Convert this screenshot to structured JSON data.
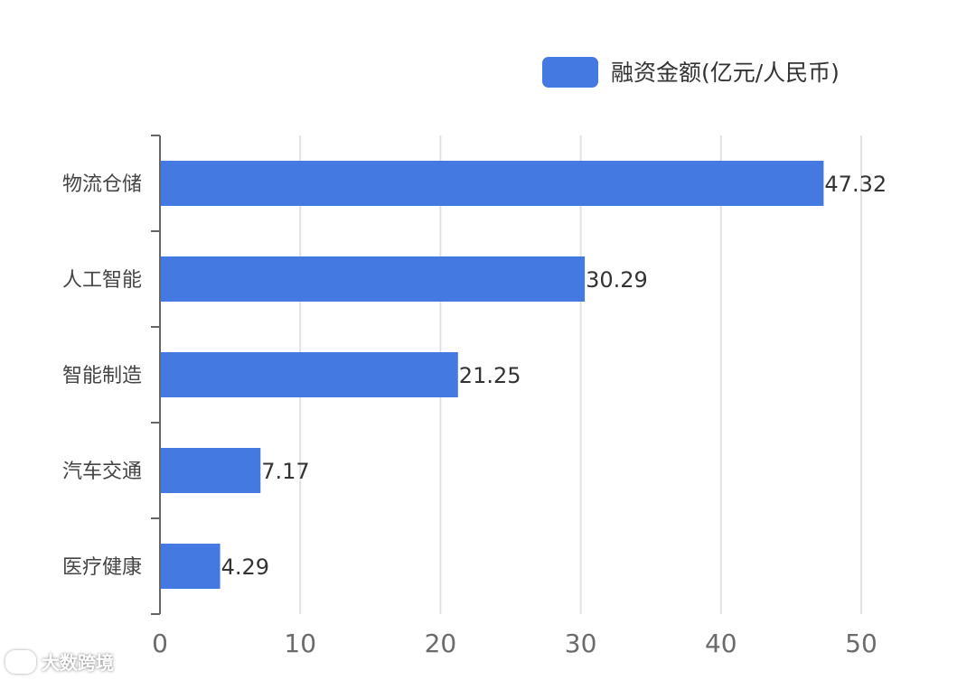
{
  "chart_data": {
    "type": "bar",
    "orientation": "horizontal",
    "categories": [
      "物流仓储",
      "人工智能",
      "智能制造",
      "汽车交通",
      "医疗健康"
    ],
    "series": [
      {
        "name": "融资金额(亿元/人民币)",
        "values": [
          47.32,
          30.29,
          21.25,
          7.17,
          4.29
        ]
      }
    ],
    "x_ticks": [
      0,
      10,
      20,
      30,
      40,
      50
    ],
    "xlim": [
      0,
      50
    ],
    "grid": true,
    "legend_position": "top-right",
    "colors": {
      "bar": "#4479e1",
      "grid": "#dde3e7",
      "axis": "#666666"
    }
  },
  "watermark": {
    "text": "大数跨境",
    "icon": "logo-icon"
  }
}
